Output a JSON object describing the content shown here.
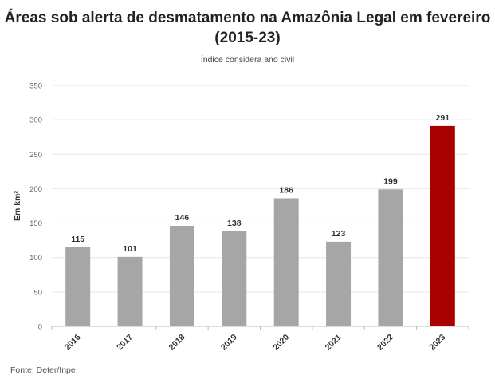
{
  "chart_data": {
    "type": "bar",
    "title": "Áreas sob alerta de desmatamento na Amazônia Legal em fevereiro (2015-23)",
    "subtitle": "Índice considera ano civil",
    "ylabel": "Em km²",
    "xlabel": "",
    "ylim": [
      0,
      350
    ],
    "yticks": [
      0,
      50,
      100,
      150,
      200,
      250,
      300,
      350
    ],
    "categories": [
      "2016",
      "2017",
      "2018",
      "2019",
      "2020",
      "2021",
      "2022",
      "2023"
    ],
    "values": [
      115,
      101,
      146,
      138,
      186,
      123,
      199,
      291
    ],
    "colors": [
      "#a6a6a6",
      "#a6a6a6",
      "#a6a6a6",
      "#a6a6a6",
      "#a6a6a6",
      "#a6a6a6",
      "#a6a6a6",
      "#aa0000"
    ],
    "grid": true,
    "source": "Fonte: Deter/Inpe"
  }
}
